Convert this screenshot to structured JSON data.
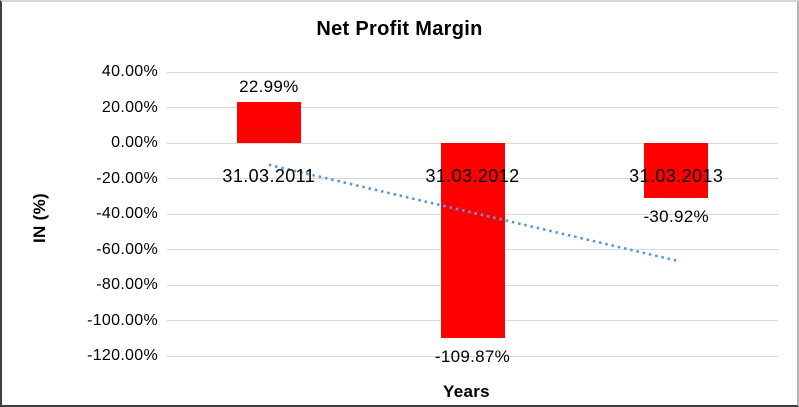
{
  "chart_data": {
    "type": "bar",
    "title": "Net Profit Margin",
    "xlabel": "Years",
    "ylabel": "IN (%)",
    "categories": [
      "31.03.2011",
      "31.03.2012",
      "31.03.2013"
    ],
    "values": [
      22.99,
      -109.87,
      -30.92
    ],
    "data_labels": [
      "22.99%",
      "-109.87%",
      "-30.92%"
    ],
    "ytick_values": [
      40,
      20,
      0,
      -20,
      -40,
      -60,
      -80,
      -100,
      -120
    ],
    "ytick_labels": [
      "40.00%",
      "20.00%",
      "0.00%",
      "-20.00%",
      "-40.00%",
      "-60.00%",
      "-80.00%",
      "-100.00%",
      "-120.00%"
    ],
    "ylim": [
      -120,
      40
    ],
    "grid": true,
    "legend": "none",
    "trendline": {
      "type": "linear",
      "style": "dotted",
      "start_value": -12.3,
      "end_value": -66.2
    },
    "colors": {
      "bar": "#FF0000",
      "trendline": "#5B9BD5",
      "gridline": "#D9D9D9",
      "text": "#000000",
      "background": "#FFFFFF"
    }
  }
}
